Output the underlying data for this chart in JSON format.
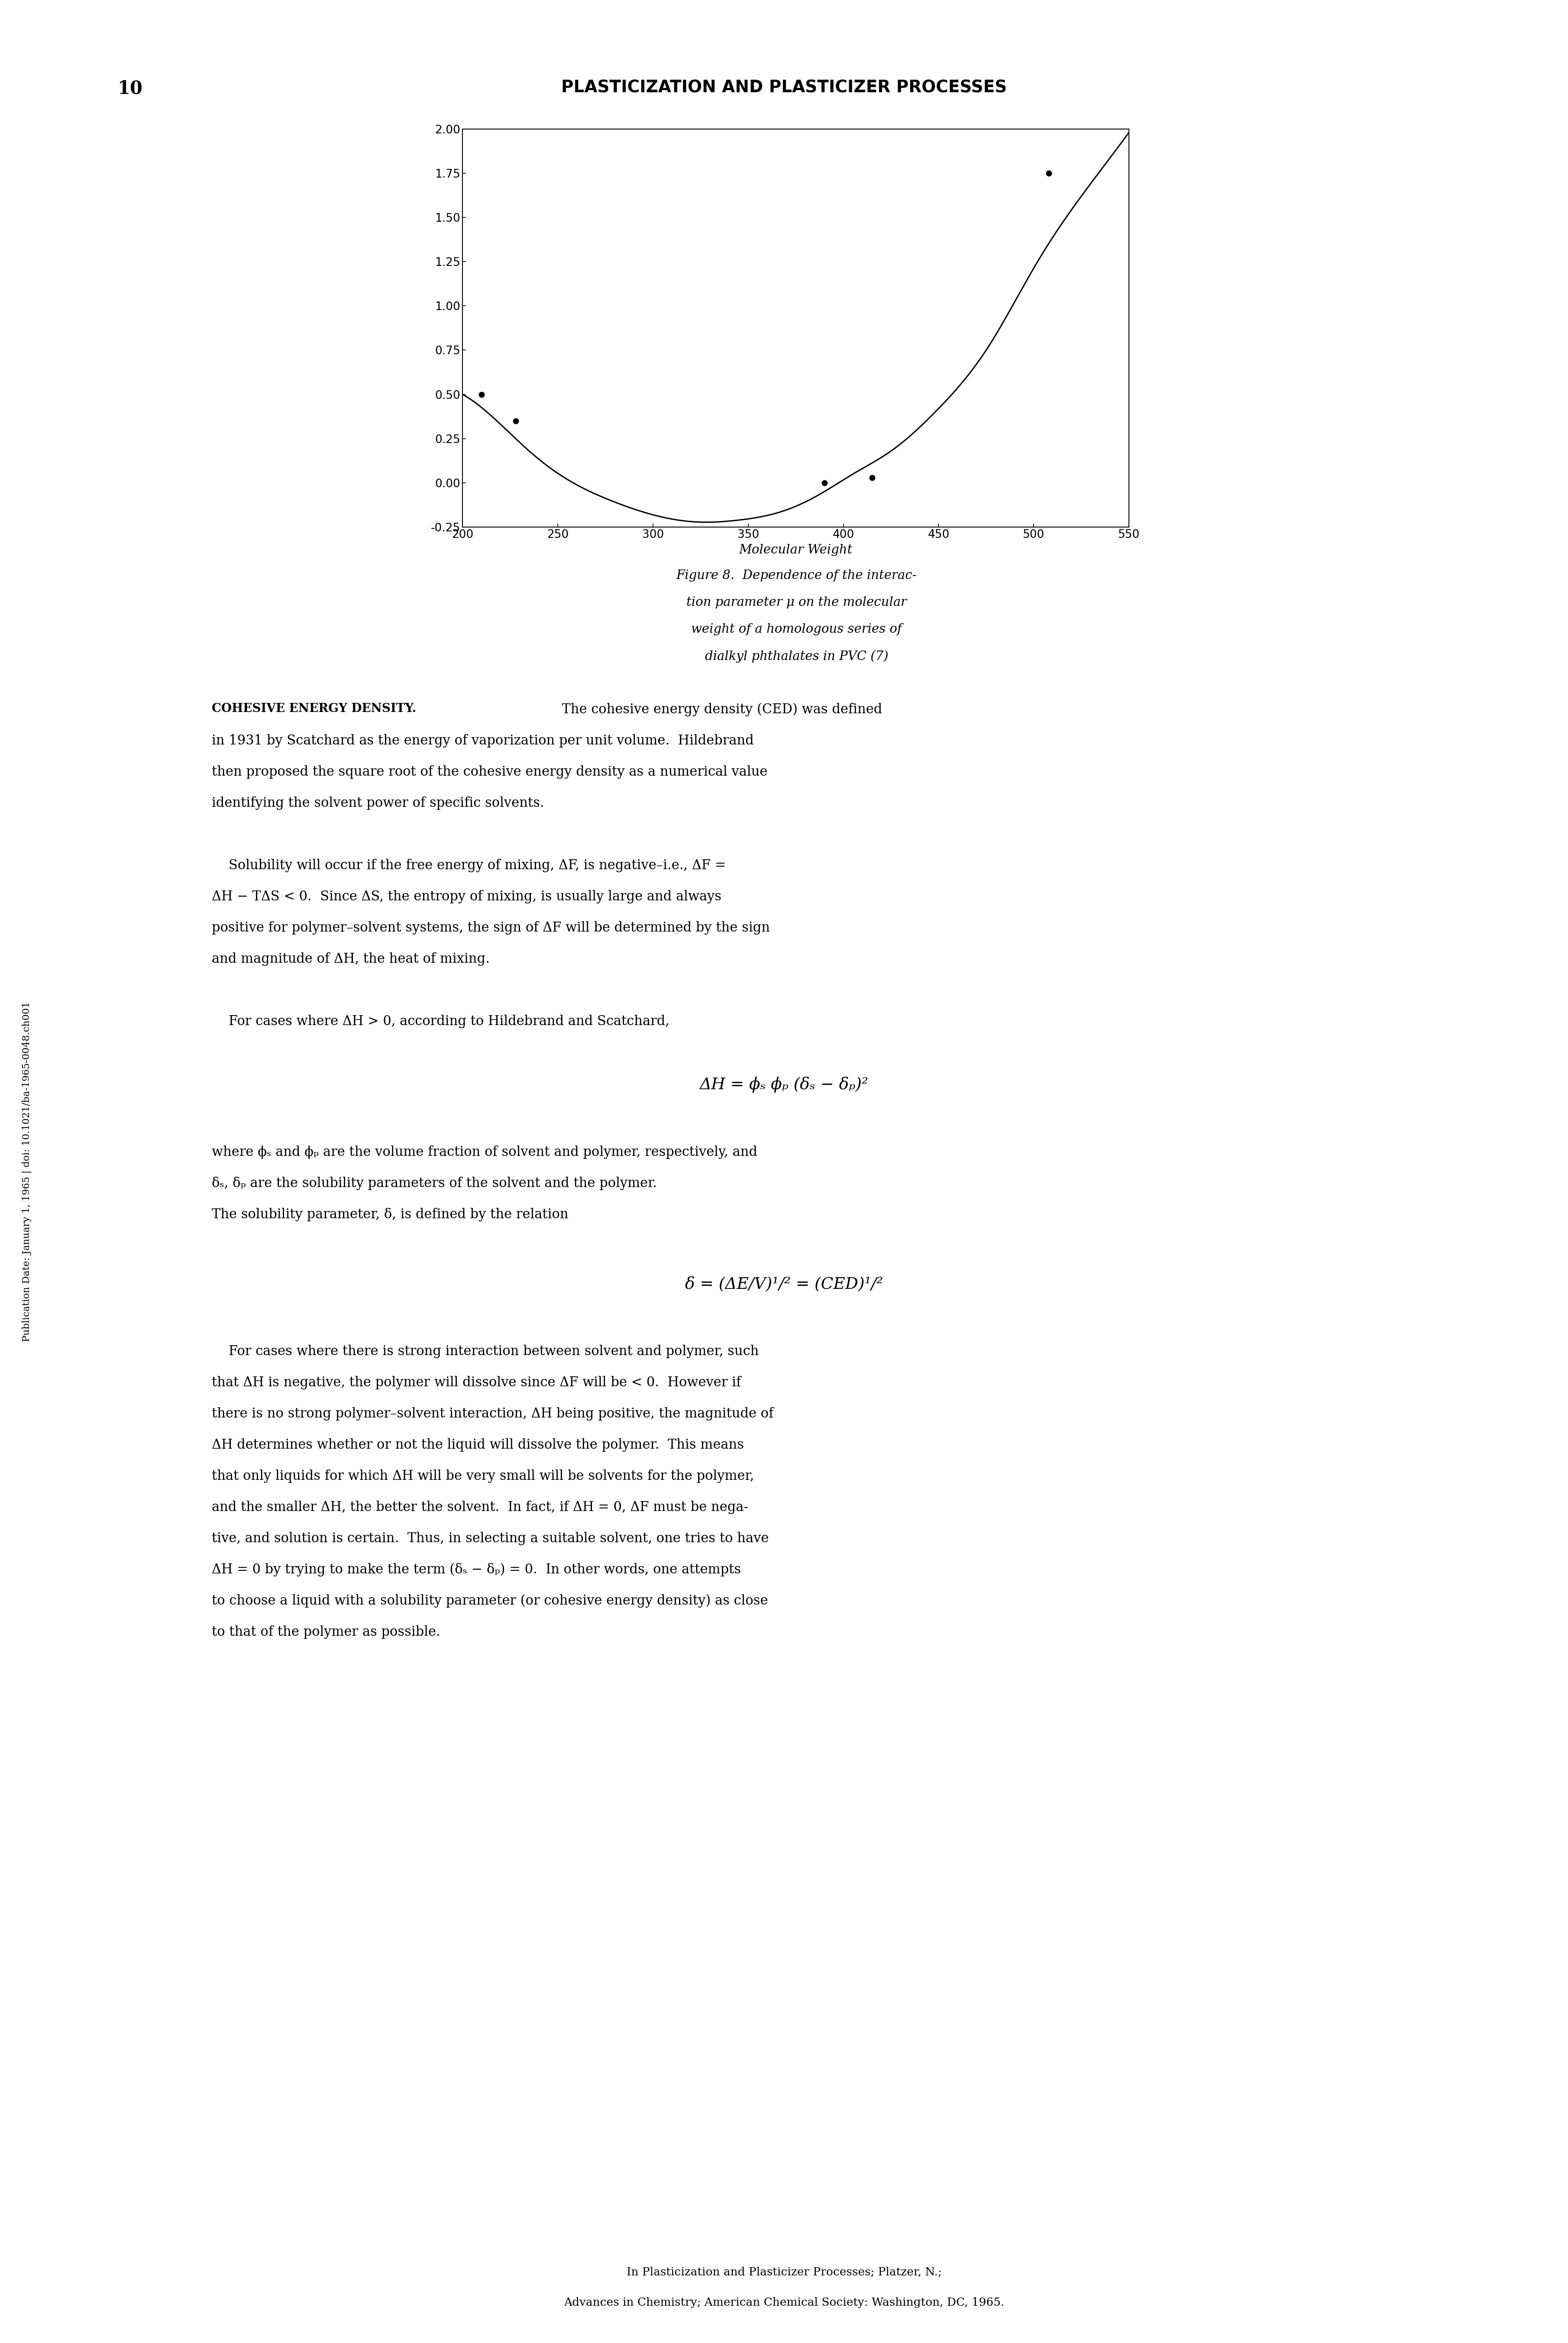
{
  "page_number": "10",
  "header_title": "PLASTICIZATION AND PLASTICIZER PROCESSES",
  "chart": {
    "x_data": [
      200,
      215,
      235,
      255,
      278,
      300,
      322,
      345,
      365,
      385,
      405,
      425,
      450,
      475,
      502,
      525,
      550
    ],
    "y_data": [
      0.5,
      0.38,
      0.18,
      0.02,
      -0.1,
      -0.18,
      -0.22,
      -0.21,
      -0.17,
      -0.08,
      0.05,
      0.18,
      0.42,
      0.75,
      1.25,
      1.62,
      1.98
    ],
    "dot_points": [
      [
        210,
        0.5
      ],
      [
        228,
        0.35
      ],
      [
        390,
        0.0
      ],
      [
        415,
        0.03
      ],
      [
        508,
        1.75
      ]
    ],
    "xlim": [
      200,
      550
    ],
    "ylim": [
      -0.25,
      2.0
    ],
    "xticks": [
      200,
      250,
      300,
      350,
      400,
      450,
      500,
      550
    ],
    "yticks": [
      -0.25,
      0.0,
      0.25,
      0.5,
      0.75,
      1.0,
      1.25,
      1.5,
      1.75,
      2.0
    ],
    "xlabel": "Molecular Weight"
  },
  "figure_caption_line1": "Figure 8.  Dependence of the interac-",
  "figure_caption_line2": "tion parameter μ on the molecular",
  "figure_caption_line3": "weight of a homologous series of",
  "figure_caption_line4": "dialkyl phthalates in PVC (7)",
  "section_heading": "Cohesive Energy Density.",
  "para1_rest": "  The cohesive energy density (CED) was defined in 1931 by Scatchard as the energy of vaporization per unit volume.  Hildebrand then proposed the square root of the cohesive energy density as a numerical value identifying the solvent power of specific solvents.",
  "para2_line1": "    Solubility will occur if the free energy of mixing, ΔF, is negative–i.e., ΔF =",
  "para2_line2": "ΔH − TΔS < 0.  Since ΔS, the entropy of mixing, is usually large and always",
  "para2_line3": "positive for polymer–solvent systems, the sign of ΔF will be determined by the sign",
  "para2_line4": "and magnitude of ΔH, the heat of mixing.",
  "para3": "    For cases where ΔH > 0, according to Hildebrand and Scatchard,",
  "equation1": "ΔH = ϕₛ ϕₚ (δₛ − δₚ)²",
  "para4_line1": "where ϕₛ and ϕₚ are the volume fraction of solvent and polymer, respectively, and",
  "para4_line2": "δₛ, δₚ are the solubility parameters of the solvent and the polymer.",
  "para4b": "The solubility parameter, δ, is defined by the relation",
  "equation2": "δ = (ΔE/V)¹/² = (CED)¹/²",
  "para5_lines": [
    "    For cases where there is strong interaction between solvent and polymer, such",
    "that ΔH is negative, the polymer will dissolve since ΔF will be < 0.  However if",
    "there is no strong polymer–solvent interaction, ΔH being positive, the magnitude of",
    "ΔH determines whether or not the liquid will dissolve the polymer.  This means",
    "that only liquids for which ΔH will be very small will be solvents for the polymer,",
    "and the smaller ΔH, the better the solvent.  In fact, if ΔH = 0, ΔF must be nega-",
    "tive, and solution is certain.  Thus, in selecting a suitable solvent, one tries to have",
    "ΔH = 0 by trying to make the term (δₛ − δₚ) = 0.  In other words, one attempts",
    "to choose a liquid with a solubility parameter (or cohesive energy density) as close",
    "to that of the polymer as possible."
  ],
  "footer1": "In Plasticization and Plasticizer Processes; Platzer, N.;",
  "footer2": "Advances in Chemistry; American Chemical Society: Washington, DC, 1965.",
  "sidebar_text": "Publication Date: January 1, 1965 | doi: 10.1021/ba-1965-0048.ch001"
}
